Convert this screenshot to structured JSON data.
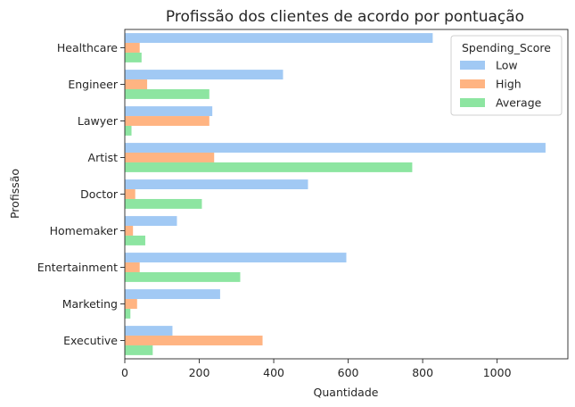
{
  "chart_data": {
    "type": "bar",
    "orientation": "horizontal",
    "title": "Profissão dos clientes de acordo por pontuação",
    "xlabel": "Quantidade",
    "ylabel": "Profissão",
    "categories": [
      "Healthcare",
      "Engineer",
      "Lawyer",
      "Artist",
      "Doctor",
      "Homemaker",
      "Entertainment",
      "Marketing",
      "Executive"
    ],
    "series": [
      {
        "name": "Low",
        "color": "#a1c9f4",
        "values": [
          827,
          425,
          235,
          1130,
          492,
          140,
          595,
          256,
          128
        ]
      },
      {
        "name": "High",
        "color": "#ffb482",
        "values": [
          40,
          60,
          227,
          240,
          28,
          22,
          40,
          33,
          370
        ]
      },
      {
        "name": "Average",
        "color": "#8de5a1",
        "values": [
          45,
          227,
          18,
          772,
          207,
          55,
          310,
          15,
          75
        ]
      }
    ],
    "xlim": [
      0,
      1190
    ],
    "xticks": [
      0,
      200,
      400,
      600,
      800,
      1000
    ],
    "legend": {
      "title": "Spending_Score",
      "placement": "top-right"
    },
    "grid": false
  }
}
